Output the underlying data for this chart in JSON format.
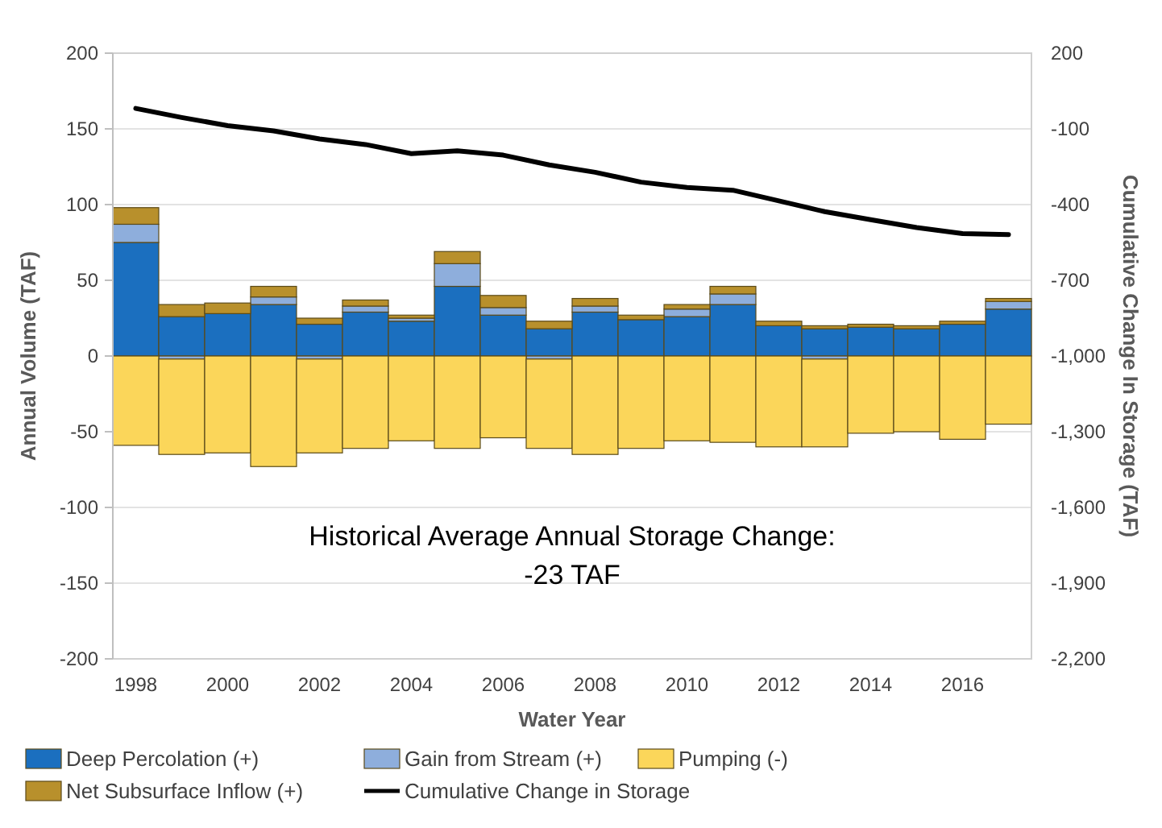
{
  "chart_data": {
    "type": "bar",
    "stacked": true,
    "xlabel": "Water Year",
    "ylabel": "Annual Volume (TAF)",
    "y2label": "Cumulative Change In Storage (TAF)",
    "categories": [
      "1998",
      null,
      "2000",
      null,
      "2002",
      null,
      "2004",
      null,
      "2006",
      null,
      "2008",
      null,
      "2010",
      null,
      "2012",
      null,
      "2014",
      null,
      "2016",
      null
    ],
    "series": [
      {
        "name": "Deep Percolation (+)",
        "color": "#1b6fbf",
        "values": [
          75,
          26,
          28,
          34,
          21,
          29,
          23,
          46,
          27,
          18,
          29,
          24,
          26,
          34,
          20,
          18,
          19,
          18,
          21,
          31
        ]
      },
      {
        "name": "Gain from Stream (+)",
        "color": "#8eaedc",
        "values": [
          12,
          -2,
          0,
          5,
          -2,
          4,
          2,
          15,
          5,
          -2,
          4,
          0,
          5,
          7,
          0,
          -2,
          0,
          0,
          0,
          5
        ]
      },
      {
        "name": "Pumping (-)",
        "color": "#fbd65a",
        "values": [
          -59,
          -63,
          -64,
          -73,
          -62,
          -61,
          -56,
          -61,
          -54,
          -59,
          -65,
          -61,
          -56,
          -57,
          -60,
          -58,
          -51,
          -50,
          -55,
          -45
        ]
      },
      {
        "name": "Net Subsurface Inflow (+)",
        "color": "#b8902c",
        "values": [
          11,
          8,
          7,
          7,
          4,
          4,
          2,
          8,
          8,
          5,
          5,
          3,
          3,
          5,
          3,
          2,
          2,
          2,
          2,
          2
        ]
      },
      {
        "name": "Cumulative Change in Storage",
        "type": "line",
        "axis": "y2",
        "color": "#000000",
        "values": [
          -19,
          -55,
          -87,
          -108,
          -140,
          -162,
          -198,
          -187,
          -204,
          -243,
          -272,
          -311,
          -332,
          -343,
          -385,
          -428,
          -460,
          -491,
          -515,
          -519
        ]
      }
    ],
    "ylim": [
      -200,
      200
    ],
    "yticks": [
      -200,
      -150,
      -100,
      -50,
      0,
      50,
      100,
      150,
      200
    ],
    "y2lim": [
      -2200,
      200
    ],
    "y2ticks": [
      {
        "value": -2200,
        "label": "-2,200"
      },
      {
        "value": -1900,
        "label": "-1,900"
      },
      {
        "value": -1600,
        "label": "-1,600"
      },
      {
        "value": -1300,
        "label": "-1,300"
      },
      {
        "value": -1000,
        "label": "-1,000"
      },
      -700,
      -400,
      -100,
      200
    ],
    "grid": "y",
    "legend": "bottom",
    "annotations": [
      "Historical Average Annual Storage Change:",
      "-23 TAF"
    ]
  }
}
